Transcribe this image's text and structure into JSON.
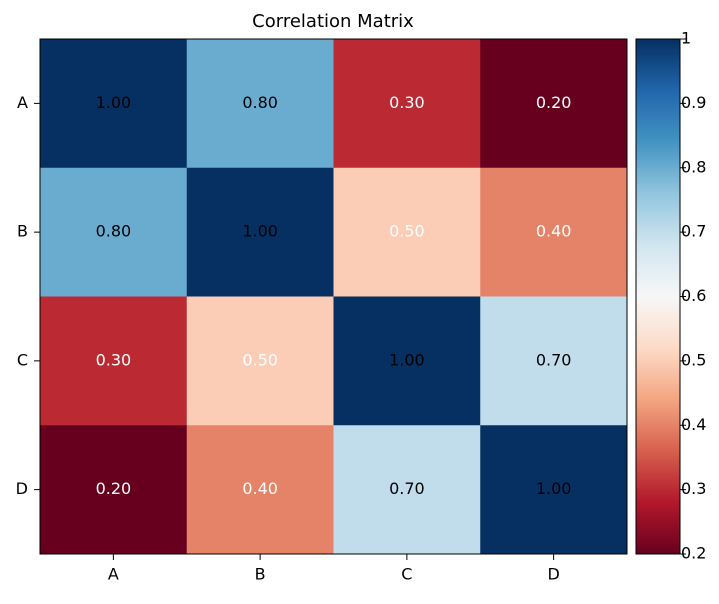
{
  "chart_data": {
    "type": "heatmap",
    "title": "Correlation Matrix",
    "x_categories": [
      "A",
      "B",
      "C",
      "D"
    ],
    "y_categories": [
      "A",
      "B",
      "C",
      "D"
    ],
    "values": [
      [
        1,
        0.8,
        0.3,
        0.2
      ],
      [
        0.8,
        1,
        0.5,
        0.4
      ],
      [
        0.3,
        0.5,
        1,
        0.7
      ],
      [
        0.2,
        0.4,
        0.7,
        1
      ]
    ],
    "value_labels": [
      [
        "1.00",
        "0.80",
        "0.30",
        "0.20"
      ],
      [
        "0.80",
        "1.00",
        "0.50",
        "0.40"
      ],
      [
        "0.30",
        "0.50",
        "1.00",
        "0.70"
      ],
      [
        "0.20",
        "0.40",
        "0.70",
        "1.00"
      ]
    ],
    "colormap": [
      "#67001f",
      "#b2182b",
      "#d6604d",
      "#f4a582",
      "#fddbc7",
      "#f7f7f7",
      "#d1e5f0",
      "#92c5de",
      "#4393c3",
      "#2166ac",
      "#053061"
    ],
    "clim": [
      0.2,
      1
    ],
    "cticks": [
      0.2,
      0.3,
      0.4,
      0.5,
      0.6,
      0.7,
      0.8,
      0.9,
      1
    ]
  }
}
